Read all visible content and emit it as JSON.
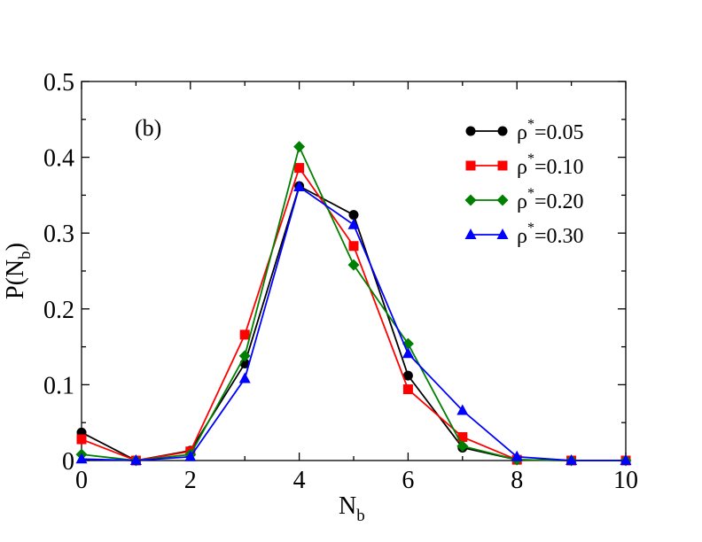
{
  "chart_data": {
    "type": "line",
    "panel_label": "(b)",
    "xlabel": {
      "main": "N",
      "sub": "b"
    },
    "ylabel": {
      "main": "P(N",
      "sub": "b",
      "close": ")"
    },
    "xlim": [
      0,
      10
    ],
    "ylim": [
      0,
      0.5
    ],
    "x_ticks": [
      "0",
      "2",
      "4",
      "6",
      "8",
      "10"
    ],
    "x_tick_values": [
      0,
      2,
      4,
      6,
      8,
      10
    ],
    "y_ticks": [
      "0",
      "0.1",
      "0.2",
      "0.3",
      "0.4",
      "0.5"
    ],
    "y_tick_values": [
      0,
      0.1,
      0.2,
      0.3,
      0.4,
      0.5
    ],
    "legend_position": "top-right",
    "x": [
      0,
      1,
      2,
      3,
      4,
      5,
      6,
      7,
      8,
      9,
      10
    ],
    "series": [
      {
        "name": "ρ*=0.05",
        "sym": "ρ",
        "sup": "*",
        "val": "=0.05",
        "color": "#000000",
        "marker": "circle",
        "values": [
          0.037,
          0.0,
          0.013,
          0.128,
          0.362,
          0.324,
          0.112,
          0.017,
          0.001,
          0.0,
          0.0
        ]
      },
      {
        "name": "ρ*=0.10",
        "sym": "ρ",
        "sup": "*",
        "val": "=0.10",
        "color": "#ff0000",
        "marker": "square",
        "values": [
          0.028,
          0.0,
          0.012,
          0.166,
          0.386,
          0.283,
          0.094,
          0.031,
          0.001,
          0.0,
          0.0
        ]
      },
      {
        "name": "ρ*=0.20",
        "sym": "ρ",
        "sup": "*",
        "val": "=0.20",
        "color": "#008000",
        "marker": "diamond",
        "values": [
          0.008,
          0.0,
          0.008,
          0.138,
          0.414,
          0.258,
          0.154,
          0.019,
          0.001,
          0.0,
          0.0
        ]
      },
      {
        "name": "ρ*=0.30",
        "sym": "ρ",
        "sup": "*",
        "val": "=0.30",
        "color": "#0000ff",
        "marker": "triangle",
        "values": [
          0.002,
          0.0,
          0.005,
          0.108,
          0.361,
          0.311,
          0.141,
          0.066,
          0.005,
          0.0,
          0.0
        ]
      }
    ]
  }
}
